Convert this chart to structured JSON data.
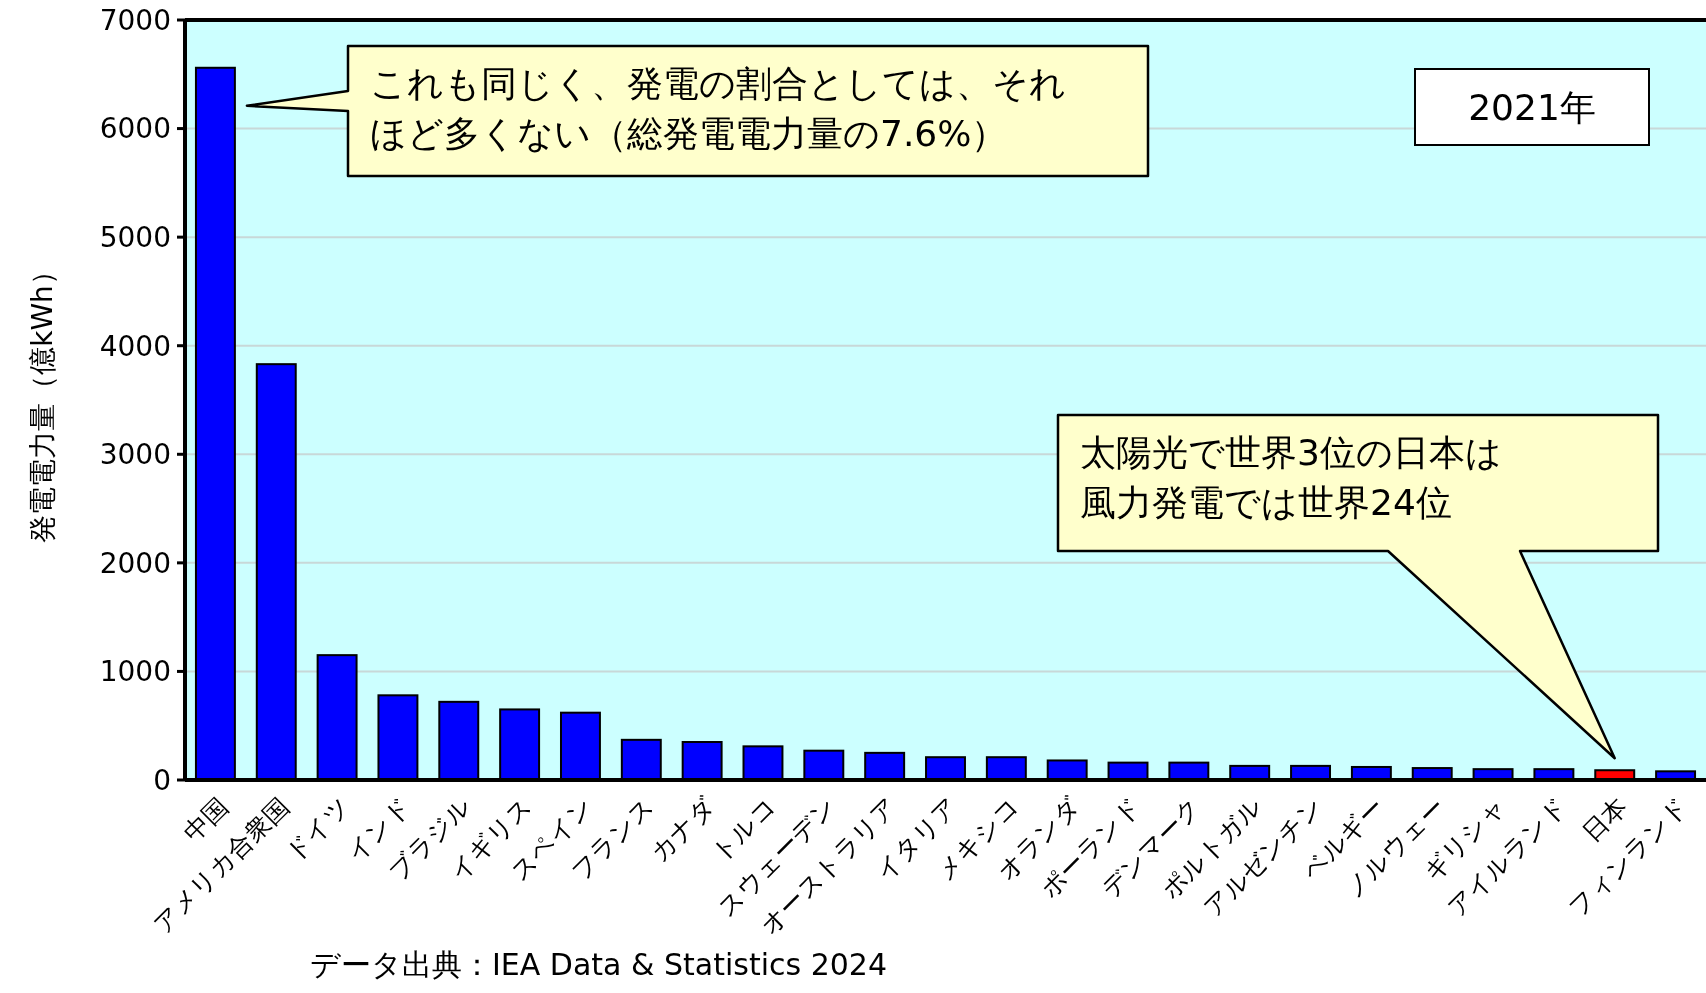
{
  "chart_data": {
    "type": "bar",
    "ylabel": "発電電力量（億kWh）",
    "categories": [
      "中国",
      "アメリカ合衆国",
      "ドイツ",
      "インド",
      "ブラジル",
      "イギリス",
      "スペイン",
      "フランス",
      "カナダ",
      "トルコ",
      "スウェーデン",
      "オーストラリア",
      "イタリア",
      "メキシコ",
      "オランダ",
      "ポーランド",
      "デンマーク",
      "ポルトガル",
      "アルゼンチン",
      "ベルギー",
      "ノルウェー",
      "ギリシャ",
      "アイルランド",
      "日本",
      "フィンランド"
    ],
    "values": [
      6560,
      3830,
      1150,
      780,
      720,
      650,
      620,
      370,
      350,
      310,
      270,
      250,
      210,
      210,
      180,
      160,
      160,
      130,
      130,
      120,
      110,
      100,
      100,
      90,
      80
    ],
    "colors": [
      "#0000ff",
      "#0000ff",
      "#0000ff",
      "#0000ff",
      "#0000ff",
      "#0000ff",
      "#0000ff",
      "#0000ff",
      "#0000ff",
      "#0000ff",
      "#0000ff",
      "#0000ff",
      "#0000ff",
      "#0000ff",
      "#0000ff",
      "#0000ff",
      "#0000ff",
      "#0000ff",
      "#0000ff",
      "#0000ff",
      "#0000ff",
      "#0000ff",
      "#0000ff",
      "#ff0000",
      "#0000ff"
    ],
    "ylim": [
      0,
      7000
    ],
    "yticks": [
      0,
      1000,
      2000,
      3000,
      4000,
      5000,
      6000,
      7000
    ],
    "grid": "y",
    "annotations": [
      "これも同じく、発電の割合としては、それほど多くない（総発電電力量の7.6%）",
      "太陽光で世界3位の日本は風力発電では世界24位",
      "2021年",
      "データ出典：IEA Data & Statistics 2024"
    ]
  }
}
